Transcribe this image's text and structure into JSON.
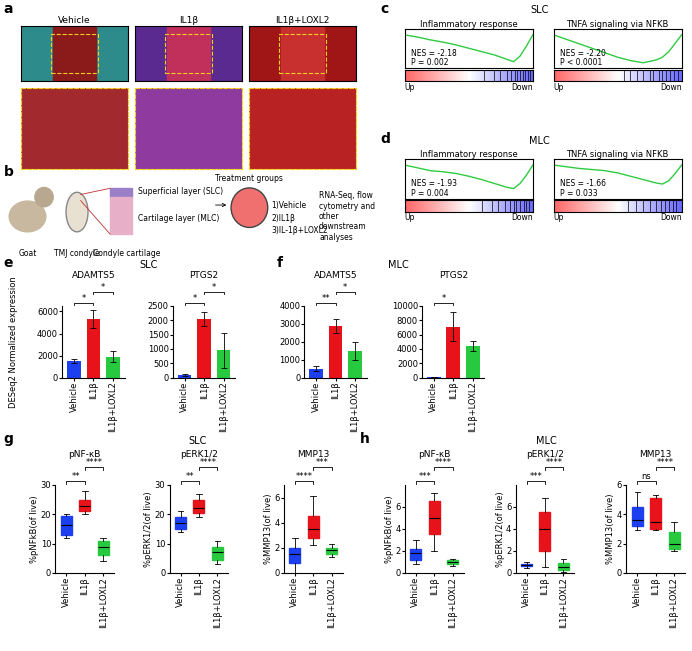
{
  "chart_data": [
    {
      "type": "gsea",
      "title": "Inflammatory response",
      "x": [
        0,
        0.1,
        0.2,
        0.3,
        0.4,
        0.5,
        0.6,
        0.7,
        0.8,
        0.85,
        0.9,
        0.95,
        1.0
      ],
      "values": [
        0,
        -0.04,
        -0.09,
        -0.13,
        -0.18,
        -0.24,
        -0.3,
        -0.36,
        -0.44,
        -0.48,
        -0.38,
        -0.2,
        0
      ],
      "color": "#2ecc40",
      "xlim": [
        0,
        1
      ],
      "ylim": [
        -0.6,
        0.1
      ],
      "tick_labels": false,
      "hits": [
        0.62,
        0.7,
        0.74,
        0.8,
        0.83,
        0.86,
        0.88,
        0.9,
        0.92,
        0.94,
        0.96,
        0.98
      ],
      "annotations": [
        "NES = -2.18",
        "P = 0.002"
      ],
      "x_labels": [
        "Up",
        "Down"
      ]
    },
    {
      "type": "gsea",
      "title": "TNFA signaling via NFKB",
      "x": [
        0,
        0.1,
        0.2,
        0.3,
        0.4,
        0.5,
        0.6,
        0.7,
        0.8,
        0.85,
        0.9,
        0.95,
        1.0
      ],
      "values": [
        0,
        -0.08,
        -0.16,
        -0.24,
        -0.32,
        -0.4,
        -0.46,
        -0.5,
        -0.45,
        -0.4,
        -0.3,
        -0.15,
        0
      ],
      "color": "#2ecc40",
      "xlim": [
        0,
        1
      ],
      "ylim": [
        -0.6,
        0.1
      ],
      "tick_labels": false,
      "hits": [
        0.55,
        0.6,
        0.65,
        0.7,
        0.75,
        0.78,
        0.82,
        0.85,
        0.88,
        0.91,
        0.94,
        0.97
      ],
      "annotations": [
        "NES = -2.20",
        "P < 0.0001"
      ],
      "x_labels": [
        "Up",
        "Down"
      ]
    },
    {
      "type": "gsea",
      "title": "Inflammatory response",
      "x": [
        0,
        0.1,
        0.2,
        0.3,
        0.4,
        0.5,
        0.6,
        0.7,
        0.8,
        0.85,
        0.9,
        0.95,
        1.0
      ],
      "values": [
        0,
        -0.05,
        -0.1,
        -0.12,
        -0.15,
        -0.2,
        -0.26,
        -0.33,
        -0.4,
        -0.42,
        -0.33,
        -0.18,
        0
      ],
      "color": "#2ecc40",
      "xlim": [
        0,
        1
      ],
      "ylim": [
        -0.6,
        0.1
      ],
      "tick_labels": false,
      "hits": [
        0.6,
        0.68,
        0.73,
        0.78,
        0.82,
        0.85,
        0.87,
        0.9,
        0.93,
        0.95,
        0.97
      ],
      "annotations": [
        "NES = -1.93",
        "P = 0.004"
      ],
      "x_labels": [
        "Up",
        "Down"
      ]
    },
    {
      "type": "gsea",
      "title": "TNFA signaling via NFKB",
      "x": [
        0,
        0.1,
        0.2,
        0.3,
        0.4,
        0.5,
        0.6,
        0.7,
        0.8,
        0.85,
        0.9,
        0.95,
        1.0
      ],
      "values": [
        0,
        -0.03,
        -0.06,
        -0.08,
        -0.1,
        -0.14,
        -0.2,
        -0.26,
        -0.32,
        -0.34,
        -0.28,
        -0.15,
        0
      ],
      "color": "#2ecc40",
      "xlim": [
        0,
        1
      ],
      "ylim": [
        -0.6,
        0.1
      ],
      "tick_labels": false,
      "hits": [
        0.58,
        0.64,
        0.7,
        0.75,
        0.8,
        0.84,
        0.87,
        0.9,
        0.93,
        0.96
      ],
      "annotations": [
        "NES = -1.66",
        "P = 0.033"
      ],
      "x_labels": [
        "Up",
        "Down"
      ]
    },
    {
      "type": "bar",
      "title": "ADAMTS5",
      "categories": [
        "Vehicle",
        "IL1β",
        "IL1β+LOXL2"
      ],
      "values": [
        1500,
        5300,
        1900
      ],
      "errors": [
        200,
        800,
        500
      ],
      "colors": [
        "#1c3ff0",
        "#e8121b",
        "#27c93f"
      ],
      "ylim": [
        0,
        6500
      ],
      "yticks": [
        0,
        2000,
        4000,
        6000
      ],
      "comparisons": [
        {
          "pair": [
            0,
            1
          ],
          "label": "*"
        },
        {
          "pair": [
            1,
            2
          ],
          "label": "*"
        }
      ]
    },
    {
      "type": "bar",
      "title": "PTGS2",
      "categories": [
        "Vehicle",
        "IL1β",
        "IL1β+LOXL2"
      ],
      "values": [
        100,
        2050,
        950
      ],
      "errors": [
        30,
        250,
        600
      ],
      "colors": [
        "#1c3ff0",
        "#e8121b",
        "#27c93f"
      ],
      "ylim": [
        0,
        2500
      ],
      "yticks": [
        0,
        500,
        1000,
        1500,
        2000,
        2500
      ],
      "comparisons": [
        {
          "pair": [
            0,
            1
          ],
          "label": "*"
        },
        {
          "pair": [
            1,
            2
          ],
          "label": "*"
        }
      ]
    },
    {
      "type": "bar",
      "title": "ADAMTS5",
      "categories": [
        "Vehicle",
        "IL1β",
        "IL1β+LOXL2"
      ],
      "values": [
        500,
        2900,
        1500
      ],
      "errors": [
        150,
        400,
        500
      ],
      "colors": [
        "#1c3ff0",
        "#e8121b",
        "#27c93f"
      ],
      "ylim": [
        0,
        4000
      ],
      "yticks": [
        0,
        1000,
        2000,
        3000,
        4000
      ],
      "comparisons": [
        {
          "pair": [
            0,
            1
          ],
          "label": "**"
        },
        {
          "pair": [
            1,
            2
          ],
          "label": "*"
        }
      ]
    },
    {
      "type": "bar",
      "title": "PTGS2",
      "categories": [
        "Vehicle",
        "IL1β",
        "IL1β+LOXL2"
      ],
      "values": [
        50,
        7100,
        4400
      ],
      "errors": [
        20,
        2000,
        700
      ],
      "colors": [
        "#1c3ff0",
        "#e8121b",
        "#27c93f"
      ],
      "ylim": [
        0,
        10000
      ],
      "yticks": [
        0,
        2000,
        4000,
        6000,
        8000,
        10000
      ],
      "comparisons": [
        {
          "pair": [
            0,
            1
          ],
          "label": "*"
        }
      ]
    },
    {
      "type": "box",
      "title": "pNF-κB",
      "y_label": "%pNFkB(of live)",
      "categories": [
        "Vehicle",
        "IL1β",
        "IL1β+LOXL2"
      ],
      "boxes": [
        {
          "min": 12,
          "q1": 13,
          "median": 16.5,
          "q3": 19.5,
          "max": 20
        },
        {
          "min": 20,
          "q1": 21,
          "median": 23,
          "q3": 25,
          "max": 28
        },
        {
          "min": 4,
          "q1": 6,
          "median": 9,
          "q3": 11,
          "max": 12
        }
      ],
      "colors": [
        "#1c3ff0",
        "#e8121b",
        "#27c93f"
      ],
      "ylim": [
        0,
        30
      ],
      "yticks": [
        0,
        10,
        20,
        30
      ],
      "comparisons": [
        {
          "pair": [
            0,
            1
          ],
          "label": "**"
        },
        {
          "pair": [
            1,
            2
          ],
          "label": "****"
        }
      ]
    },
    {
      "type": "box",
      "title": "pERK1/2",
      "y_label": "%pERK1/2(of live)",
      "categories": [
        "Vehicle",
        "IL1β",
        "IL1β+LOXL2"
      ],
      "boxes": [
        {
          "min": 14,
          "q1": 15,
          "median": 17,
          "q3": 19,
          "max": 21
        },
        {
          "min": 19,
          "q1": 20.5,
          "median": 22,
          "q3": 25,
          "max": 27
        },
        {
          "min": 3,
          "q1": 4.5,
          "median": 7,
          "q3": 9,
          "max": 11
        }
      ],
      "colors": [
        "#1c3ff0",
        "#e8121b",
        "#27c93f"
      ],
      "ylim": [
        0,
        30
      ],
      "yticks": [
        0,
        10,
        20,
        30
      ],
      "comparisons": [
        {
          "pair": [
            0,
            1
          ],
          "label": "**"
        },
        {
          "pair": [
            1,
            2
          ],
          "label": "****"
        }
      ]
    },
    {
      "type": "box",
      "title": "MMP13",
      "y_label": "%MMP13(of live)",
      "categories": [
        "Vehicle",
        "IL1β",
        "IL1β+LOXL2"
      ],
      "boxes": [
        {
          "min": 0,
          "q1": 0.8,
          "median": 1.5,
          "q3": 2,
          "max": 2.8
        },
        {
          "min": 2.2,
          "q1": 2.8,
          "median": 3.5,
          "q3": 4.5,
          "max": 6.1
        },
        {
          "min": 1.3,
          "q1": 1.5,
          "median": 1.8,
          "q3": 2,
          "max": 2.3
        }
      ],
      "colors": [
        "#1c3ff0",
        "#e8121b",
        "#27c93f"
      ],
      "ylim": [
        0,
        7
      ],
      "yticks": [
        0,
        2,
        4,
        6
      ],
      "comparisons": [
        {
          "pair": [
            0,
            1
          ],
          "label": "****"
        },
        {
          "pair": [
            1,
            2
          ],
          "label": "***"
        }
      ]
    },
    {
      "type": "box",
      "title": "pNF-κB",
      "y_label": "%pNFkB(of live)",
      "categories": [
        "Vehicle",
        "IL1β",
        "IL1β+LOXL2"
      ],
      "boxes": [
        {
          "min": 0.8,
          "q1": 1.2,
          "median": 1.8,
          "q3": 2.2,
          "max": 3
        },
        {
          "min": 2,
          "q1": 3.5,
          "median": 5,
          "q3": 6.5,
          "max": 7.3
        },
        {
          "min": 0.6,
          "q1": 0.8,
          "median": 1,
          "q3": 1.2,
          "max": 1.3
        }
      ],
      "colors": [
        "#1c3ff0",
        "#e8121b",
        "#27c93f"
      ],
      "ylim": [
        0,
        8
      ],
      "yticks": [
        0,
        2,
        4,
        6
      ],
      "comparisons": [
        {
          "pair": [
            0,
            1
          ],
          "label": "***"
        },
        {
          "pair": [
            1,
            2
          ],
          "label": "****"
        }
      ]
    },
    {
      "type": "box",
      "title": "pERK1/2",
      "y_label": "%pERK1/2(of live)",
      "categories": [
        "Vehicle",
        "IL1β",
        "IL1β+LOXL2"
      ],
      "boxes": [
        {
          "min": 0.4,
          "q1": 0.6,
          "median": 0.7,
          "q3": 0.8,
          "max": 1
        },
        {
          "min": 0.5,
          "q1": 2,
          "median": 4,
          "q3": 5.5,
          "max": 6.8
        },
        {
          "min": 0.1,
          "q1": 0.3,
          "median": 0.5,
          "q3": 0.9,
          "max": 1.3
        }
      ],
      "colors": [
        "#1c3ff0",
        "#e8121b",
        "#27c93f"
      ],
      "ylim": [
        0,
        8
      ],
      "yticks": [
        0,
        2,
        4,
        6
      ],
      "comparisons": [
        {
          "pair": [
            0,
            1
          ],
          "label": "***"
        },
        {
          "pair": [
            1,
            2
          ],
          "label": "****"
        }
      ]
    },
    {
      "type": "box",
      "title": "MMP13",
      "y_label": "%MMP13(of live)",
      "categories": [
        "Vehicle",
        "IL1β",
        "IL1β+LOXL2"
      ],
      "boxes": [
        {
          "min": 2.9,
          "q1": 3.2,
          "median": 3.6,
          "q3": 4.5,
          "max": 5.5
        },
        {
          "min": 2.9,
          "q1": 3,
          "median": 3.5,
          "q3": 5.1,
          "max": 5.3
        },
        {
          "min": 1.5,
          "q1": 1.6,
          "median": 2,
          "q3": 2.8,
          "max": 3.5
        }
      ],
      "colors": [
        "#1c3ff0",
        "#e8121b",
        "#27c93f"
      ],
      "ylim": [
        0,
        6
      ],
      "yticks": [
        0,
        2,
        4,
        6
      ],
      "comparisons": [
        {
          "pair": [
            0,
            1
          ],
          "label": "ns"
        },
        {
          "pair": [
            1,
            2
          ],
          "label": "****"
        }
      ]
    }
  ],
  "figure": {
    "panel_letters": [
      "a",
      "b",
      "c",
      "d",
      "e",
      "f",
      "g",
      "h"
    ],
    "group_titles": [
      "SLC",
      "MLC",
      "SLC",
      "MLC",
      "SLC",
      "MLC"
    ],
    "expression_ylabel": "DESeq2 Normalized expression",
    "histology": {
      "titles": [
        "Vehicle",
        "IL1β",
        "IL1β+LOXL2"
      ]
    },
    "schematic": {
      "goat": "Goat",
      "condyle": "TMJ condyle",
      "cartilage": "Condyle cartilage",
      "layers": [
        "Superficial layer (SLC)",
        "Cartilage layer (MLC)"
      ],
      "treatment_title": "Treatment groups",
      "treatments": [
        "1)Vehicle",
        "2)IL1β",
        "3)IL-1β+LOXL2"
      ],
      "analyses": "RNA-Seq, flow cytometry and other downstream analyses"
    }
  }
}
